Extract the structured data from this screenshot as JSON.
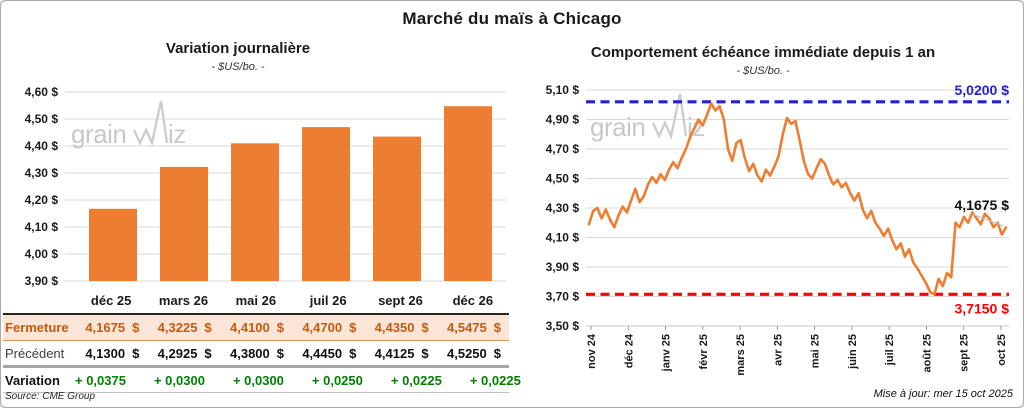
{
  "page": {
    "title": "Marché du maïs à Chicago",
    "source": "Source: CME Group",
    "updated": "Mise à jour: mer 15 oct 2025",
    "watermark": "grainwiz"
  },
  "colors": {
    "orange": "#ED7D31",
    "blue": "#2222CE",
    "red": "#FE0000",
    "green": "#008000",
    "fermeture_text": "#C55A11",
    "fermeture_bg": "#FBE5D6",
    "grid": "#DADADA",
    "watermark": "#C8C8C8",
    "leader": "#BFBFBF"
  },
  "chart_data": [
    {
      "type": "bar",
      "title": "Variation journalière",
      "subtitle": "- $US/bo. -",
      "categories": [
        "déc 25",
        "mars 26",
        "mai 26",
        "juil 26",
        "sept 26",
        "déc 26"
      ],
      "values": [
        4.1675,
        4.3225,
        4.41,
        4.47,
        4.435,
        4.5475
      ],
      "ylim": [
        3.9,
        4.6
      ],
      "ytick_step": 0.1,
      "ytick_labels": [
        "3,90 $",
        "4,00 $",
        "4,10 $",
        "4,20 $",
        "4,30 $",
        "4,40 $",
        "4,50 $",
        "4,60 $"
      ],
      "bar_color": "#ED7D31",
      "grid": true,
      "legend": "none"
    },
    {
      "type": "line",
      "title": "Comportement échéance immédiate depuis 1 an",
      "subtitle": "- $US/bo. -",
      "x_labels": [
        "nov 24",
        "déc 24",
        "janv 25",
        "févr 25",
        "mars 25",
        "avr 25",
        "mai 25",
        "juin 25",
        "juil 25",
        "août 25",
        "sept 25",
        "oct 25"
      ],
      "values": [
        4.19,
        4.28,
        4.3,
        4.23,
        4.29,
        4.22,
        4.17,
        4.25,
        4.31,
        4.27,
        4.35,
        4.43,
        4.34,
        4.38,
        4.46,
        4.51,
        4.47,
        4.53,
        4.49,
        4.56,
        4.61,
        4.57,
        4.64,
        4.7,
        4.78,
        4.84,
        4.9,
        4.86,
        4.93,
        5.01,
        4.96,
        4.99,
        4.9,
        4.7,
        4.62,
        4.74,
        4.76,
        4.64,
        4.55,
        4.6,
        4.52,
        4.48,
        4.56,
        4.52,
        4.58,
        4.65,
        4.8,
        4.91,
        4.87,
        4.89,
        4.76,
        4.62,
        4.53,
        4.5,
        4.57,
        4.63,
        4.6,
        4.52,
        4.46,
        4.49,
        4.44,
        4.47,
        4.4,
        4.35,
        4.4,
        4.29,
        4.23,
        4.28,
        4.2,
        4.16,
        4.11,
        4.16,
        4.08,
        4.02,
        4.06,
        3.97,
        4.02,
        3.93,
        3.89,
        3.84,
        3.79,
        3.73,
        3.715,
        3.82,
        3.77,
        3.86,
        3.83,
        4.2,
        4.17,
        4.24,
        4.2,
        4.27,
        4.23,
        4.19,
        4.26,
        4.23,
        4.17,
        4.2,
        4.12,
        4.1675
      ],
      "ylim": [
        3.5,
        5.1
      ],
      "ytick_step": 0.2,
      "ytick_labels": [
        "3,50 $",
        "3,70 $",
        "3,90 $",
        "4,10 $",
        "4,30 $",
        "4,50 $",
        "4,70 $",
        "4,90 $",
        "5,10 $"
      ],
      "line_color": "#ED7D31",
      "ref_lines": [
        {
          "value": 5.02,
          "label": "5,0200 $",
          "color": "#2222CE",
          "label_pos": "above"
        },
        {
          "value": 3.715,
          "label": "3,7150 $",
          "color": "#FE0000",
          "label_pos": "below"
        }
      ],
      "last_value": 4.1675,
      "last_label": "4,1675 $",
      "grid": true,
      "legend": "none"
    }
  ],
  "left_table": {
    "columns": [
      "déc 25",
      "mars 26",
      "mai 26",
      "juil 26",
      "sept 26",
      "déc 26"
    ],
    "rows": [
      {
        "label": "Fermeture",
        "style": "fermeture",
        "suffix": "$",
        "values": [
          "4,1675",
          "4,3225",
          "4,4100",
          "4,4700",
          "4,4350",
          "4,5475"
        ]
      },
      {
        "label": "Précédent",
        "style": "precedent",
        "suffix": "$",
        "values": [
          "4,1300",
          "4,2925",
          "4,3800",
          "4,4450",
          "4,4125",
          "4,5250"
        ]
      },
      {
        "label": "Variation",
        "style": "variation",
        "suffix": "",
        "values": [
          "+ 0,0375",
          "+ 0,0300",
          "+ 0,0300",
          "+ 0,0250",
          "+ 0,0225",
          "+ 0,0225"
        ]
      }
    ]
  }
}
